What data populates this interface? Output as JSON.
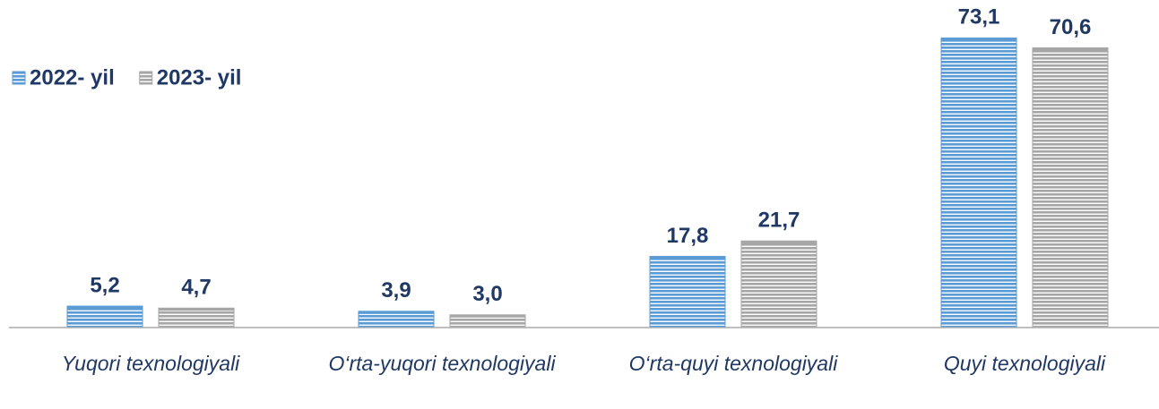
{
  "chart_data": {
    "type": "bar",
    "categories": [
      "Yuqori texnologiyali",
      "O‘rta-yuqori texnologiyali",
      "O‘rta-quyi texnologiyali",
      "Quyi texnologiyali"
    ],
    "series": [
      {
        "name": "2022- yil",
        "color": "#5b9bd5",
        "values": [
          5.2,
          3.9,
          17.8,
          73.1
        ],
        "value_labels": [
          "5,2",
          "3,9",
          "17,8",
          "73,1"
        ]
      },
      {
        "name": "2023- yil",
        "color": "#a6a6a6",
        "values": [
          4.7,
          3.0,
          21.7,
          70.6
        ],
        "value_labels": [
          "4,7",
          "3,0",
          "21,7",
          "70,6"
        ]
      }
    ],
    "ylim": [
      0,
      75
    ],
    "legend": "top-left"
  }
}
